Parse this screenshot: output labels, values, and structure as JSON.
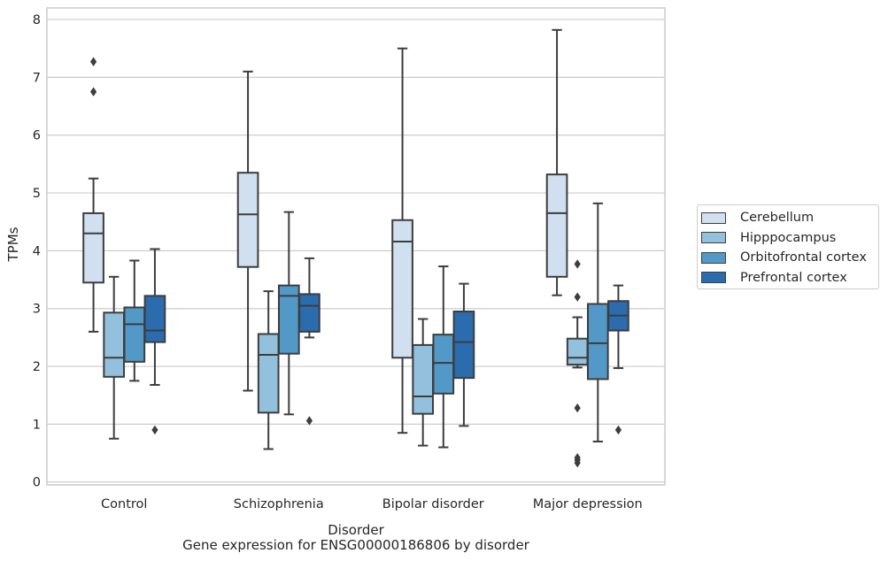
{
  "chart_data": {
    "type": "box",
    "caption": "Gene expression for ENSG00000186806 by disorder",
    "xlabel": "Disorder",
    "ylabel": "TPMs",
    "ylim": [
      -0.05,
      8.2
    ],
    "yticks": [
      0,
      1,
      2,
      3,
      4,
      5,
      6,
      7,
      8
    ],
    "grid": "horizontal",
    "legend_position": "right",
    "categories": [
      "Control",
      "Schizophrenia",
      "Bipolar disorder",
      "Major depression"
    ],
    "series": [
      {
        "name": "Cerebellum",
        "color": "#d0e0f0",
        "boxes": [
          {
            "q1": 3.45,
            "median": 4.3,
            "q3": 4.65,
            "whisker_low": 2.6,
            "whisker_high": 5.25,
            "outliers": [
              6.75,
              7.27
            ]
          },
          {
            "q1": 3.72,
            "median": 4.63,
            "q3": 5.35,
            "whisker_low": 1.58,
            "whisker_high": 7.1,
            "outliers": []
          },
          {
            "q1": 2.15,
            "median": 4.16,
            "q3": 4.53,
            "whisker_low": 0.85,
            "whisker_high": 7.5,
            "outliers": []
          },
          {
            "q1": 3.55,
            "median": 4.65,
            "q3": 5.32,
            "whisker_low": 3.23,
            "whisker_high": 7.82,
            "outliers": []
          }
        ]
      },
      {
        "name": "Hipppocampus",
        "color": "#93c0dc",
        "boxes": [
          {
            "q1": 1.82,
            "median": 2.15,
            "q3": 2.93,
            "whisker_low": 0.75,
            "whisker_high": 3.55,
            "outliers": []
          },
          {
            "q1": 1.2,
            "median": 2.2,
            "q3": 2.56,
            "whisker_low": 0.57,
            "whisker_high": 3.3,
            "outliers": []
          },
          {
            "q1": 1.18,
            "median": 1.48,
            "q3": 2.37,
            "whisker_low": 0.63,
            "whisker_high": 2.82,
            "outliers": []
          },
          {
            "q1": 2.03,
            "median": 2.15,
            "q3": 2.48,
            "whisker_low": 1.98,
            "whisker_high": 2.85,
            "outliers": [
              0.33,
              0.38,
              0.42,
              1.28,
              3.2,
              3.77
            ]
          }
        ]
      },
      {
        "name": "Orbitofrontal cortex",
        "color": "#5299c8",
        "boxes": [
          {
            "q1": 2.08,
            "median": 2.73,
            "q3": 3.02,
            "whisker_low": 1.75,
            "whisker_high": 3.83,
            "outliers": []
          },
          {
            "q1": 2.22,
            "median": 3.22,
            "q3": 3.4,
            "whisker_low": 1.17,
            "whisker_high": 4.67,
            "outliers": []
          },
          {
            "q1": 1.53,
            "median": 2.06,
            "q3": 2.55,
            "whisker_low": 0.6,
            "whisker_high": 3.73,
            "outliers": []
          },
          {
            "q1": 1.78,
            "median": 2.4,
            "q3": 3.08,
            "whisker_low": 0.7,
            "whisker_high": 4.82,
            "outliers": []
          }
        ]
      },
      {
        "name": "Prefrontal cortex",
        "color": "#2a6cae",
        "boxes": [
          {
            "q1": 2.42,
            "median": 2.62,
            "q3": 3.22,
            "whisker_low": 1.68,
            "whisker_high": 4.03,
            "outliers": [
              0.9
            ]
          },
          {
            "q1": 2.6,
            "median": 3.05,
            "q3": 3.25,
            "whisker_low": 2.5,
            "whisker_high": 3.87,
            "outliers": [
              1.06
            ]
          },
          {
            "q1": 1.8,
            "median": 2.42,
            "q3": 2.95,
            "whisker_low": 0.97,
            "whisker_high": 3.43,
            "outliers": []
          },
          {
            "q1": 2.62,
            "median": 2.88,
            "q3": 3.13,
            "whisker_low": 1.97,
            "whisker_high": 3.4,
            "outliers": [
              0.9
            ]
          }
        ]
      }
    ]
  }
}
